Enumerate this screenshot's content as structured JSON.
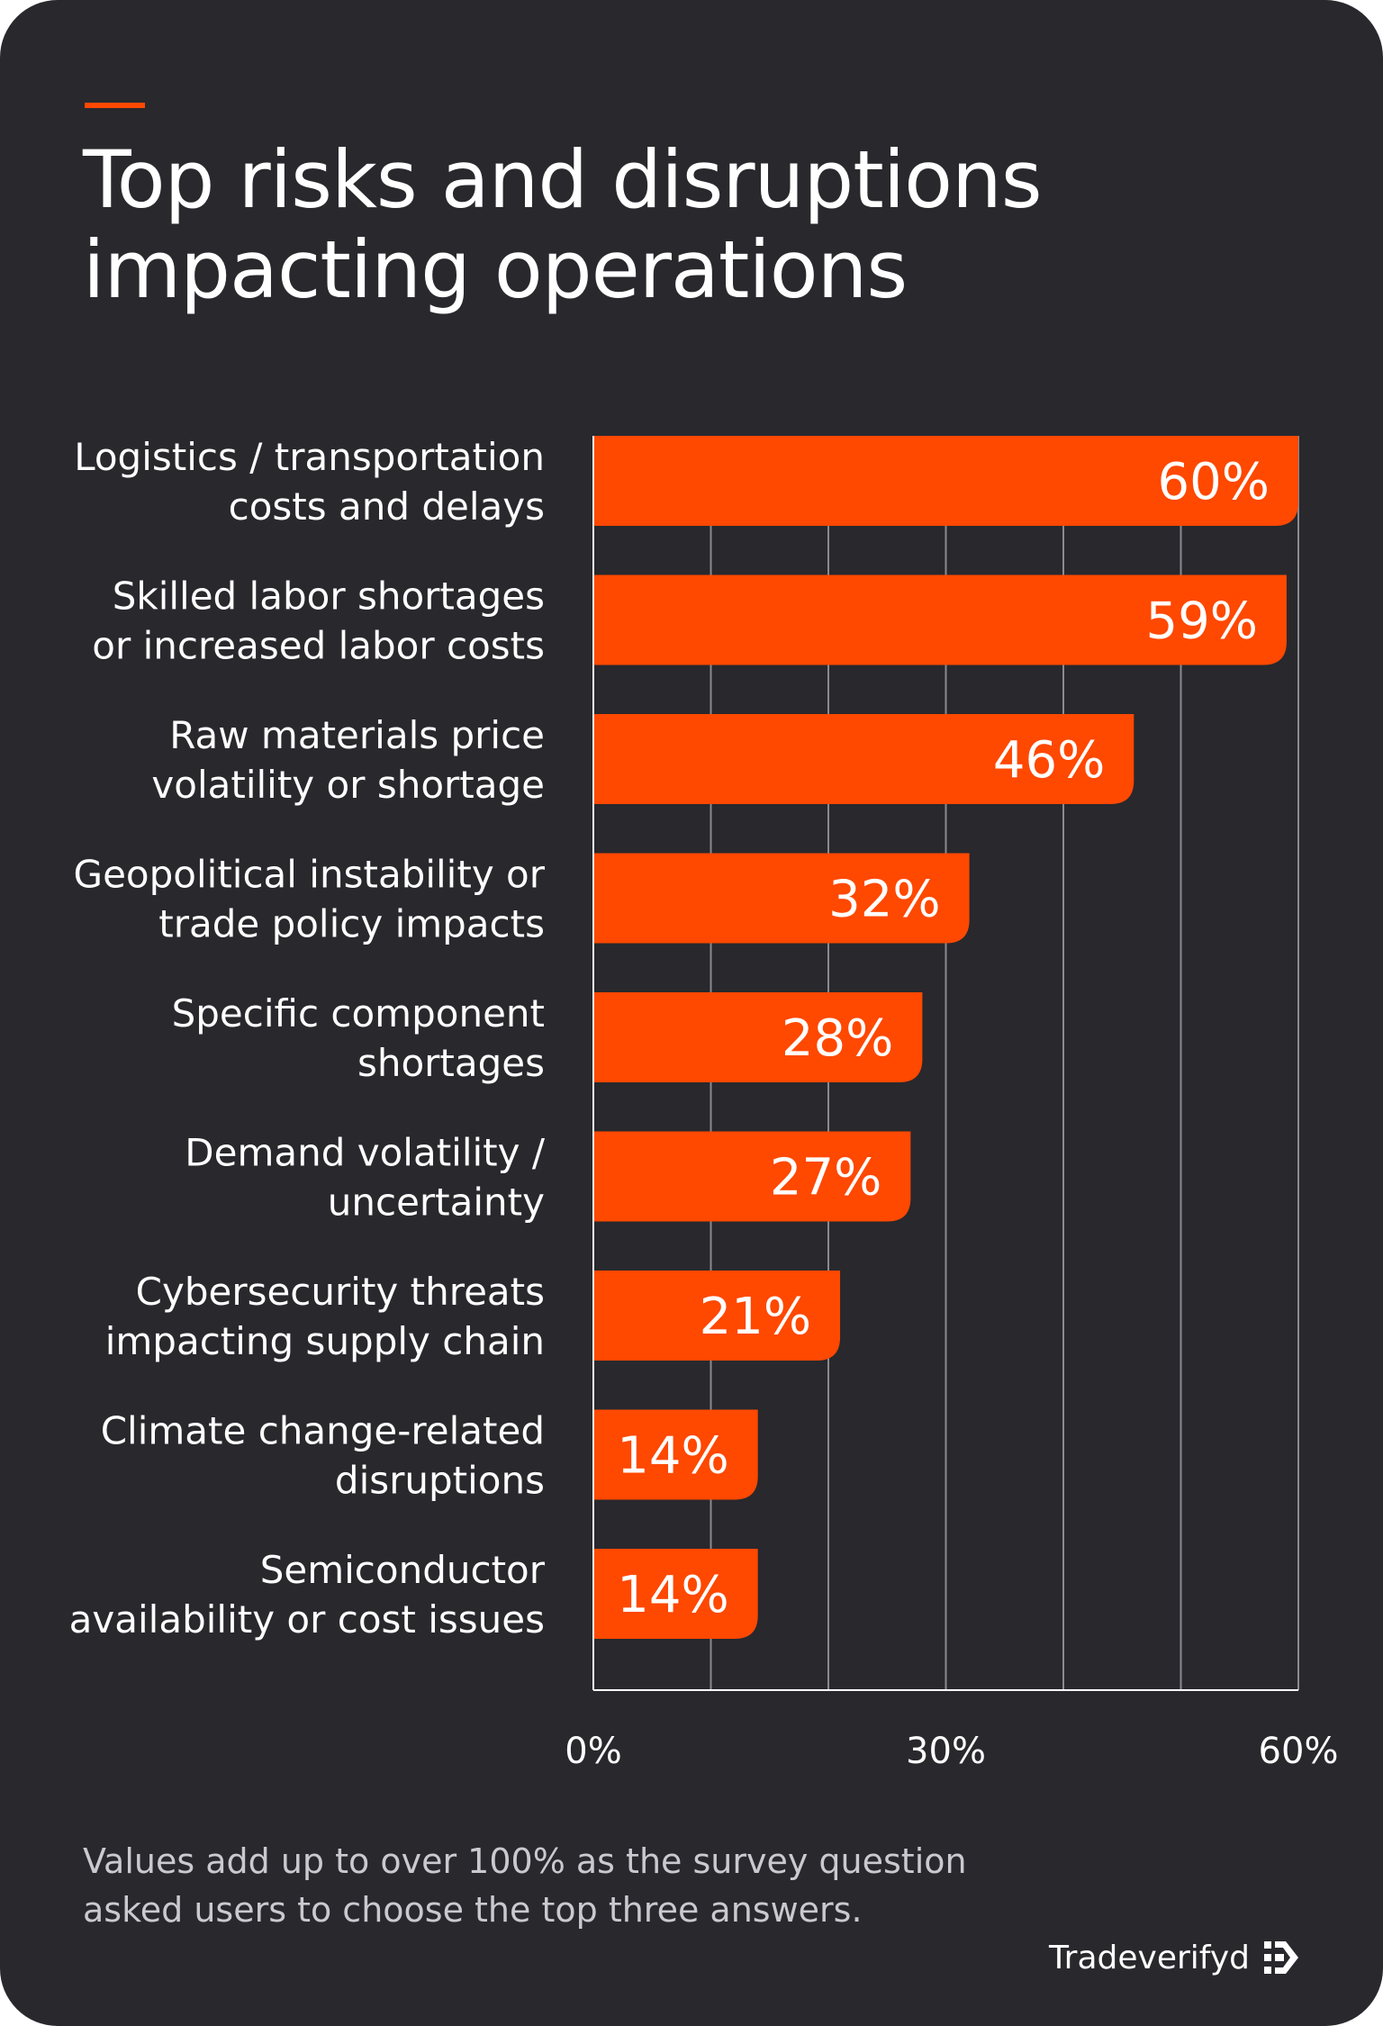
{
  "title_lines": [
    "Top risks and disruptions",
    "impacting operations"
  ],
  "chart_data": {
    "type": "bar",
    "orientation": "horizontal",
    "categories": [
      [
        "Logistics / transportation",
        "costs and delays"
      ],
      [
        "Skilled labor shortages",
        "or increased labor costs"
      ],
      [
        "Raw materials price",
        "volatility or shortage"
      ],
      [
        "Geopolitical instability or",
        "trade policy impacts"
      ],
      [
        "Specific component",
        "shortages"
      ],
      [
        "Demand volatility /",
        "uncertainty"
      ],
      [
        "Cybersecurity threats",
        "impacting supply chain"
      ],
      [
        "Climate change-related",
        "disruptions"
      ],
      [
        "Semiconductor",
        "availability or cost issues"
      ]
    ],
    "values": [
      60,
      59,
      46,
      32,
      28,
      27,
      21,
      14,
      14
    ],
    "value_labels": [
      "60%",
      "59%",
      "46%",
      "32%",
      "28%",
      "27%",
      "21%",
      "14%",
      "14%"
    ],
    "xlim": [
      0,
      60
    ],
    "ticks": [
      0,
      30,
      60
    ],
    "tick_labels": [
      "0%",
      "30%",
      "60%"
    ],
    "grid": true,
    "bar_color": "#ff4800",
    "background_color": "#28282d"
  },
  "footnote_lines": [
    "Values add up to over 100% as the survey question",
    "asked users to choose the top three answers."
  ],
  "brand": {
    "name": "Tradeverifyd",
    "logo_icon": "tradeverifyd-logo-icon"
  }
}
